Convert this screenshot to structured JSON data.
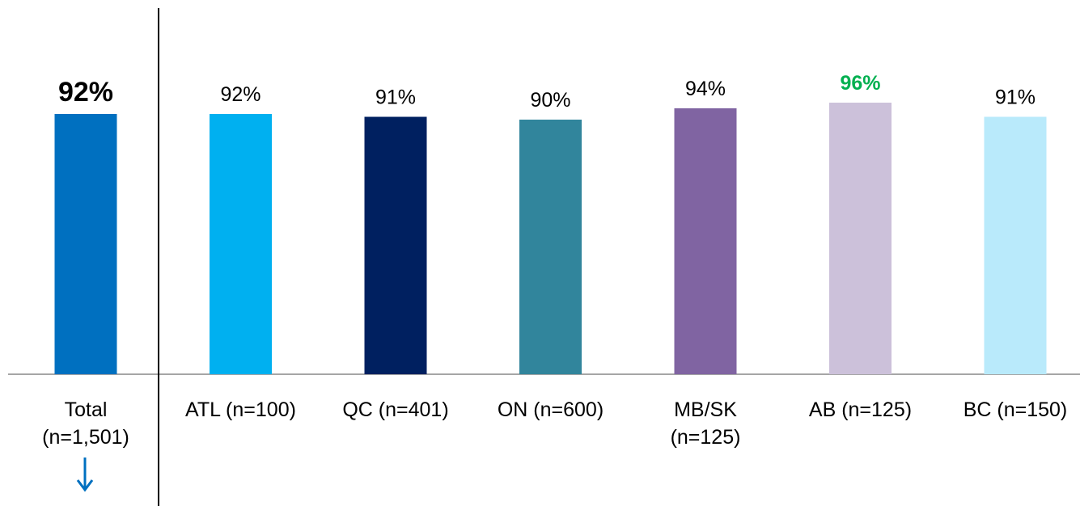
{
  "chart_data": {
    "type": "bar",
    "categories": [
      [
        "Total",
        "(n=1,501)"
      ],
      [
        "ATL (n=100)"
      ],
      [
        "QC (n=401)"
      ],
      [
        "ON (n=600)"
      ],
      [
        "MB/SK",
        "(n=125)"
      ],
      [
        "AB (n=125)"
      ],
      [
        "BC (n=150)"
      ]
    ],
    "values": [
      92,
      92,
      91,
      90,
      94,
      96,
      91
    ],
    "value_labels": [
      "92%",
      "92%",
      "91%",
      "90%",
      "94%",
      "96%",
      "91%"
    ],
    "colors": [
      "#0070C0",
      "#00B0F0",
      "#002060",
      "#31859C",
      "#8064A2",
      "#CCC1DA",
      "#B9EAFB"
    ],
    "label_colors": [
      "#000000",
      "#000000",
      "#000000",
      "#000000",
      "#000000",
      "#00B050",
      "#000000"
    ],
    "label_bold": [
      true,
      false,
      false,
      false,
      false,
      true,
      false
    ],
    "ylim": [
      0,
      100
    ],
    "grid": false,
    "divider_after_index": 0,
    "total_indicator": "down-arrow",
    "title": "",
    "xlabel": "",
    "ylabel": ""
  }
}
